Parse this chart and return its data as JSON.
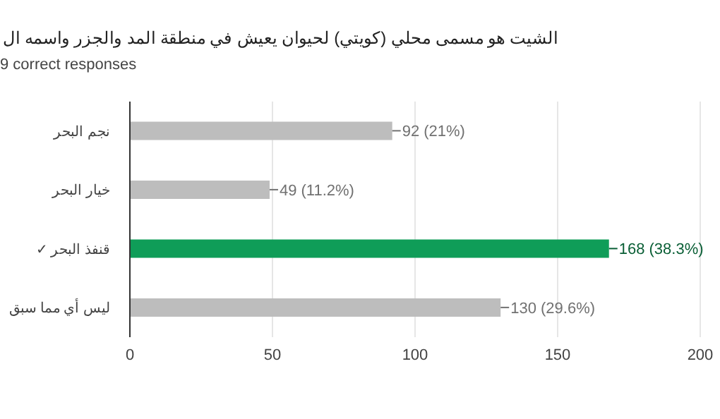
{
  "chart_data": {
    "type": "bar",
    "orientation": "horizontal",
    "title": "الشيت هو مسمى محلي (كويتي) لحيوان يعيش في منطقة المد والجزر واسمه ال",
    "subtitle": "9 correct responses",
    "categories": [
      "نجم البحر",
      "خيار البحر",
      "قنفذ البحر ✓",
      "ليس أي مما سبق"
    ],
    "values": [
      92,
      49,
      168,
      130
    ],
    "colors": [
      "#bdbdbd",
      "#bdbdbd",
      "#0f9d58",
      "#bdbdbd"
    ],
    "value_labels": [
      "92 (21%)",
      "49 (11.2%)",
      "168 (38.3%)",
      "130 (29.6%)"
    ],
    "xlim": [
      0,
      200
    ],
    "xticks": [
      0,
      50,
      100,
      150,
      200
    ],
    "grid": "x",
    "legend": false
  }
}
